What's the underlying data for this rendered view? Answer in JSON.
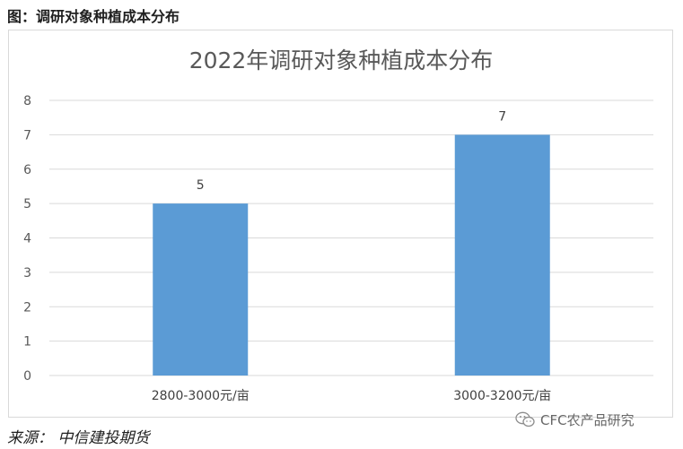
{
  "figure_caption": "图：调研对象种植成本分布",
  "source": "来源：   中信建投期货",
  "watermark": {
    "text": "CFC农产品研究",
    "icon": "wechat-icon"
  },
  "colors": {
    "bar": "#5b9bd5",
    "grid": "#d9d9d9",
    "axis_text": "#595959",
    "title_text": "#595959",
    "label_text": "#404040"
  },
  "chart_data": {
    "type": "bar",
    "title": "2022年调研对象种植成本分布",
    "xlabel": "",
    "ylabel": "",
    "categories": [
      "2800-3000元/亩",
      "3000-3200元/亩"
    ],
    "values": [
      5,
      7
    ],
    "data_labels": [
      "5",
      "7"
    ],
    "ylim": [
      0,
      8
    ],
    "yticks": [
      0,
      1,
      2,
      3,
      4,
      5,
      6,
      7,
      8
    ],
    "grid": true,
    "legend": "none"
  }
}
